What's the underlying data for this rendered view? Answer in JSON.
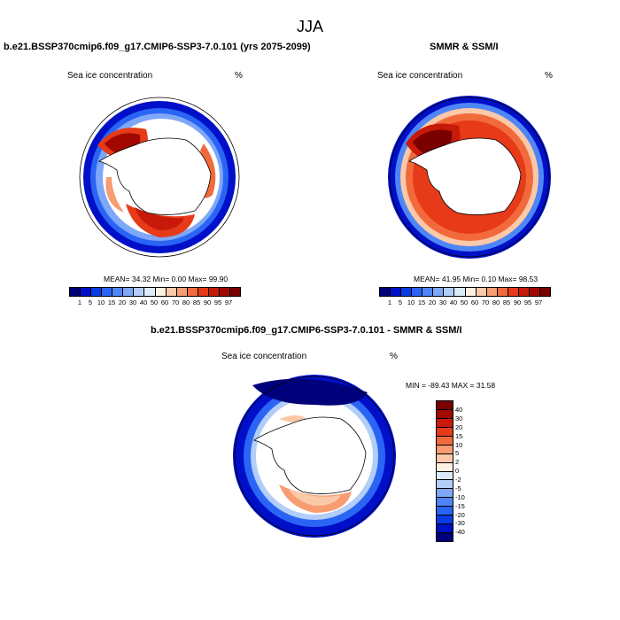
{
  "main_title": "JJA",
  "panels": [
    {
      "title": "b.e21.BSSP370cmip6.f09_g17.CMIP6-SSP3-7.0.101 (yrs 2075-2099)",
      "variable": "Sea ice concentration",
      "unit": "%",
      "stats": "MEAN=  34.32  Min=   0.00  Max=  99.90"
    },
    {
      "title": "SMMR & SSM/I",
      "variable": "Sea ice concentration",
      "unit": "%",
      "stats": "MEAN=  41.95  Min=   0.10  Max=  98.53"
    },
    {
      "title": "b.e21.BSSP370cmip6.f09_g17.CMIP6-SSP3-7.0.101 - SMMR & SSM/I",
      "variable": "Sea ice concentration",
      "unit": "%",
      "stats": "MIN = -89.43 MAX =  31.58"
    }
  ],
  "concentration_colorbar": {
    "labels": [
      "1",
      "5",
      "10",
      "15",
      "20",
      "30",
      "40",
      "50",
      "60",
      "70",
      "80",
      "85",
      "90",
      "95",
      "97"
    ],
    "colors": [
      "#00007a",
      "#0010c8",
      "#0a3ce6",
      "#2a64f5",
      "#4f86f7",
      "#7ea7f8",
      "#b1cdf8",
      "#dcebfb",
      "#fff0e4",
      "#fbc8a8",
      "#f89c72",
      "#f26a3c",
      "#e63a18",
      "#c81a08",
      "#a10800",
      "#7a0000"
    ]
  },
  "difference_colorbar": {
    "labels": [
      "40",
      "30",
      "20",
      "15",
      "10",
      "5",
      "2",
      "0",
      "-2",
      "-5",
      "-10",
      "-15",
      "-20",
      "-30",
      "-40"
    ],
    "colors": [
      "#7a0000",
      "#a10800",
      "#c81a08",
      "#e63a18",
      "#f26a3c",
      "#f89c72",
      "#fbc8a8",
      "#fff0e4",
      "#dcebfb",
      "#b1cdf8",
      "#7ea7f8",
      "#4f86f7",
      "#2a64f5",
      "#0a3ce6",
      "#0010c8",
      "#00007a"
    ]
  }
}
